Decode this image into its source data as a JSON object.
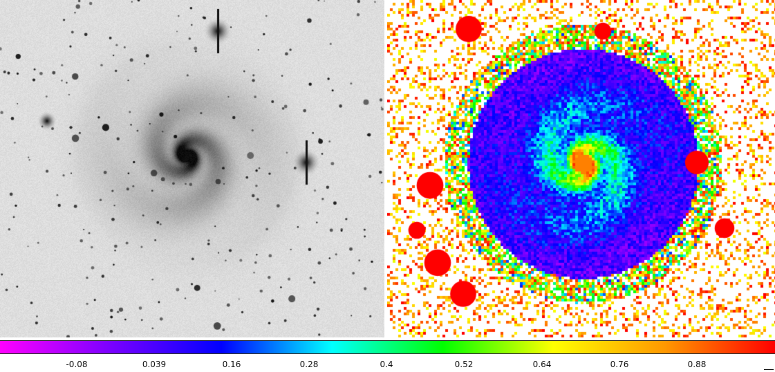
{
  "colorbar": {
    "colors": [
      "#ff00ff",
      "#7a00ff",
      "#0000ff",
      "#00ffff",
      "#00ff00",
      "#ffff00",
      "#ff9900",
      "#ff0000"
    ],
    "ticks": [
      {
        "label": "-0.08"
      },
      {
        "label": "0.039"
      },
      {
        "label": "0.16"
      },
      {
        "label": "0.28"
      },
      {
        "label": "0.4"
      },
      {
        "label": "0.52"
      },
      {
        "label": "0.64"
      },
      {
        "label": "0.76"
      },
      {
        "label": "0.88"
      }
    ]
  },
  "left_panel": {
    "description_icon": "grayscale-galaxy-image"
  },
  "right_panel": {
    "description_icon": "false-color-galaxy-image"
  }
}
